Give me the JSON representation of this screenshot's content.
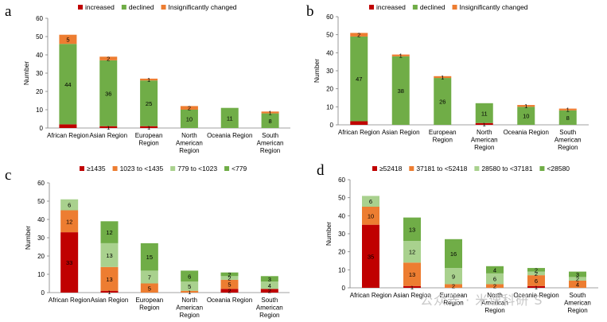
{
  "colors": {
    "increased": "#c00000",
    "declined": "#70ad47",
    "insig": "#ed7d31",
    "q1": "#c00000",
    "q2": "#ed7d31",
    "q3": "#a9d18e",
    "q4": "#70ad47",
    "axis": "#808080",
    "text": "#000000"
  },
  "watermark": "公众号 · 米速科研 S",
  "chart_data": [
    {
      "panel": "a",
      "type": "bar",
      "stacked": true,
      "ylabel": "Number",
      "ylim": [
        0,
        60
      ],
      "yticks": [
        0,
        10,
        20,
        30,
        40,
        50,
        60
      ],
      "legend_position": "top",
      "categories": [
        "African Region",
        "Asian Region",
        "European Region",
        "North American Region",
        "Oceania Region",
        "South American Region"
      ],
      "series": [
        {
          "name": "increased",
          "color": "increased",
          "values": [
            2,
            1,
            1,
            0,
            0,
            0
          ],
          "labels": [
            "",
            "1",
            "1",
            "",
            "",
            ""
          ]
        },
        {
          "name": "declined",
          "color": "declined",
          "values": [
            44,
            36,
            25,
            10,
            11,
            8
          ],
          "labels": [
            "44",
            "36",
            "25",
            "10",
            "11",
            "8"
          ]
        },
        {
          "name": "Insignificantly changed",
          "color": "insig",
          "values": [
            5,
            2,
            1,
            2,
            0,
            1
          ],
          "labels": [
            "5",
            "2",
            "1",
            "2",
            "",
            "1"
          ]
        }
      ]
    },
    {
      "panel": "b",
      "type": "bar",
      "stacked": true,
      "ylabel": "Number",
      "ylim": [
        0,
        60
      ],
      "yticks": [
        0,
        10,
        20,
        30,
        40,
        50,
        60
      ],
      "legend_position": "top",
      "categories": [
        "African Region",
        "Asian Region",
        "European Region",
        "North American Region",
        "Oceania Region",
        "South American Region"
      ],
      "series": [
        {
          "name": "increased",
          "color": "increased",
          "values": [
            2,
            0,
            0,
            1,
            0,
            0
          ],
          "labels": [
            "",
            "",
            "",
            "1",
            "",
            ""
          ]
        },
        {
          "name": "declined",
          "color": "declined",
          "values": [
            47,
            38,
            26,
            11,
            10,
            8
          ],
          "labels": [
            "47",
            "38",
            "26",
            "11",
            "10",
            "8"
          ]
        },
        {
          "name": "Insignificantly changed",
          "color": "insig",
          "values": [
            2,
            1,
            1,
            0,
            1,
            1
          ],
          "labels": [
            "2",
            "1",
            "1",
            "",
            "1",
            "1"
          ]
        }
      ]
    },
    {
      "panel": "c",
      "type": "bar",
      "stacked": true,
      "ylabel": "Number",
      "ylim": [
        0,
        60
      ],
      "yticks": [
        0,
        10,
        20,
        30,
        40,
        50,
        60
      ],
      "legend_position": "top",
      "categories": [
        "African Region",
        "Asian Region",
        "European Region",
        "North American Region",
        "Oceania Region",
        "South American Region"
      ],
      "series": [
        {
          "name": "≥1435",
          "color": "q1",
          "values": [
            33,
            1,
            0,
            0,
            2,
            2
          ],
          "labels": [
            "33",
            "1",
            "",
            "",
            "2",
            "2"
          ]
        },
        {
          "name": "1023 to <1435",
          "color": "q2",
          "values": [
            12,
            13,
            5,
            1,
            5,
            0
          ],
          "labels": [
            "12",
            "13",
            "5",
            "1",
            "5",
            ""
          ]
        },
        {
          "name": "779 to <1023",
          "color": "q3",
          "values": [
            6,
            13,
            7,
            5,
            2,
            4
          ],
          "labels": [
            "6",
            "13",
            "7",
            "5",
            "2",
            "4"
          ]
        },
        {
          "name": "<779",
          "color": "q4",
          "values": [
            0,
            12,
            15,
            6,
            2,
            3
          ],
          "labels": [
            "",
            "12",
            "15",
            "6",
            "2",
            "3"
          ]
        }
      ]
    },
    {
      "panel": "d",
      "type": "bar",
      "stacked": true,
      "ylabel": "Number",
      "ylim": [
        0,
        60
      ],
      "yticks": [
        0,
        10,
        20,
        30,
        40,
        50,
        60
      ],
      "legend_position": "top",
      "categories": [
        "African Region",
        "Asian Region",
        "European Region",
        "North American Region",
        "Oceania Region",
        "South American Region"
      ],
      "series": [
        {
          "name": "≥52418",
          "color": "q1",
          "values": [
            35,
            1,
            0,
            0,
            1,
            0
          ],
          "labels": [
            "35",
            "1",
            "",
            "",
            "1",
            ""
          ]
        },
        {
          "name": "37181 to <52418",
          "color": "q2",
          "values": [
            10,
            13,
            2,
            2,
            6,
            4
          ],
          "labels": [
            "10",
            "13",
            "2",
            "2",
            "6",
            "4"
          ]
        },
        {
          "name": "28580 to <37181",
          "color": "q3",
          "values": [
            6,
            12,
            9,
            6,
            2,
            2
          ],
          "labels": [
            "6",
            "12",
            "9",
            "6",
            "2",
            "2"
          ]
        },
        {
          "name": "<28580",
          "color": "q4",
          "values": [
            0,
            13,
            16,
            4,
            2,
            3
          ],
          "labels": [
            "",
            "13",
            "16",
            "4",
            "2",
            "3"
          ]
        }
      ]
    }
  ]
}
